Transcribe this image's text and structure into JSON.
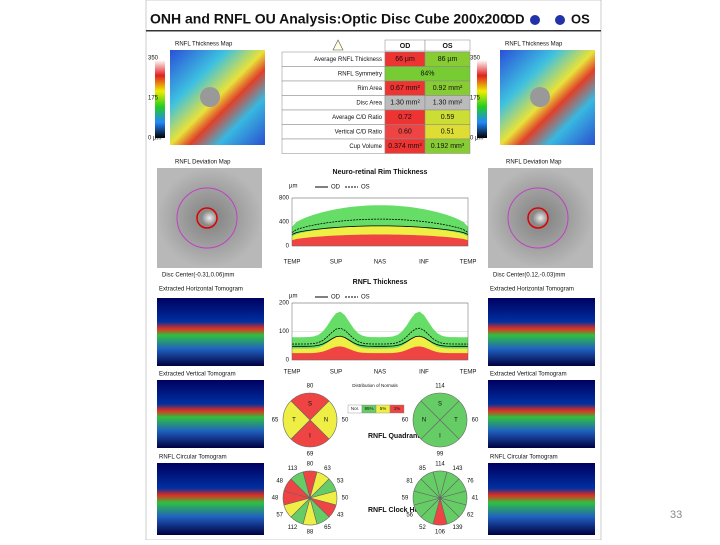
{
  "header": {
    "title": "ONH and RNFL OU Analysis:Optic Disc Cube 200x200",
    "od": "OD",
    "os": "OS"
  },
  "od_panel": {
    "thickness_map": "RNFL Thickness Map",
    "scale": [
      "350",
      "175",
      "0 µm"
    ],
    "deviation_map": "RNFL Deviation Map",
    "disc_center": "Disc Center(-0.31,0.06)mm",
    "horizontal": "Extracted Horizontal Tomogram",
    "vertical": "Extracted Vertical Tomogram",
    "circular": "RNFL Circular Tomogram"
  },
  "os_panel": {
    "thickness_map": "RNFL Thickness Map",
    "scale": [
      "350",
      "175",
      "0 µm"
    ],
    "deviation_map": "RNFL Deviation Map",
    "disc_center": "Disc Center(0.12,-0.03)mm",
    "horizontal": "Extracted Horizontal Tomogram",
    "vertical": "Extracted Vertical Tomogram",
    "circular": "RNFL Circular Tomogram"
  },
  "table": {
    "header": [
      "OD",
      "OS"
    ],
    "rows": [
      [
        "Average RNFL Thickness",
        "66 µm",
        "86 µm"
      ],
      [
        "RNFL Symmetry",
        "84%"
      ],
      [
        "Rim Area",
        "0.67 mm²",
        "0.92 mm²"
      ],
      [
        "Disc Area",
        "1.30 mm²",
        "1.30 mm²"
      ],
      [
        "Average C/D Ratio",
        "0.72",
        "0.59"
      ],
      [
        "Vertical C/D Ratio",
        "0.60",
        "0.51"
      ],
      [
        "Cup Volume",
        "0.374 mm³",
        "0.192 mm³"
      ]
    ]
  },
  "rim_chart": {
    "title": "Neuro-retinal Rim Thickness",
    "legend": [
      "OD",
      "OS"
    ],
    "unit": "µm",
    "yticks": [
      "800",
      "400",
      "0"
    ],
    "xlabels": [
      "TEMP",
      "SUP",
      "NAS",
      "INF",
      "TEMP"
    ]
  },
  "rnfl_chart": {
    "title": "RNFL Thickness",
    "legend": [
      "OD",
      "OS"
    ],
    "unit": "µm",
    "yticks": [
      "200",
      "100",
      "0"
    ],
    "xlabels": [
      "TEMP",
      "SUP",
      "NAS",
      "INF",
      "TEMP"
    ]
  },
  "quadrants": {
    "title": "RNFL Quadrants",
    "legend_title": "Distribution of Normals",
    "legend": [
      "Nor.",
      "95%",
      "5%",
      "1%"
    ],
    "od": {
      "letters": [
        "S",
        "N",
        "I",
        "T"
      ],
      "values": [
        "80",
        "50",
        "69",
        "65"
      ]
    },
    "os": {
      "letters": [
        "S",
        "T",
        "I",
        "N"
      ],
      "values": [
        "114",
        "60",
        "99",
        "60"
      ]
    }
  },
  "clock": {
    "title": "RNFL Clock Hours",
    "od": [
      "80",
      "63",
      "53",
      "50",
      "43",
      "65",
      "88",
      "112",
      "57",
      "48",
      "48",
      "113"
    ],
    "os": [
      "114",
      "143",
      "76",
      "41",
      "62",
      "139",
      "106",
      "52",
      "56",
      "59",
      "81",
      "85"
    ]
  },
  "page": "33"
}
